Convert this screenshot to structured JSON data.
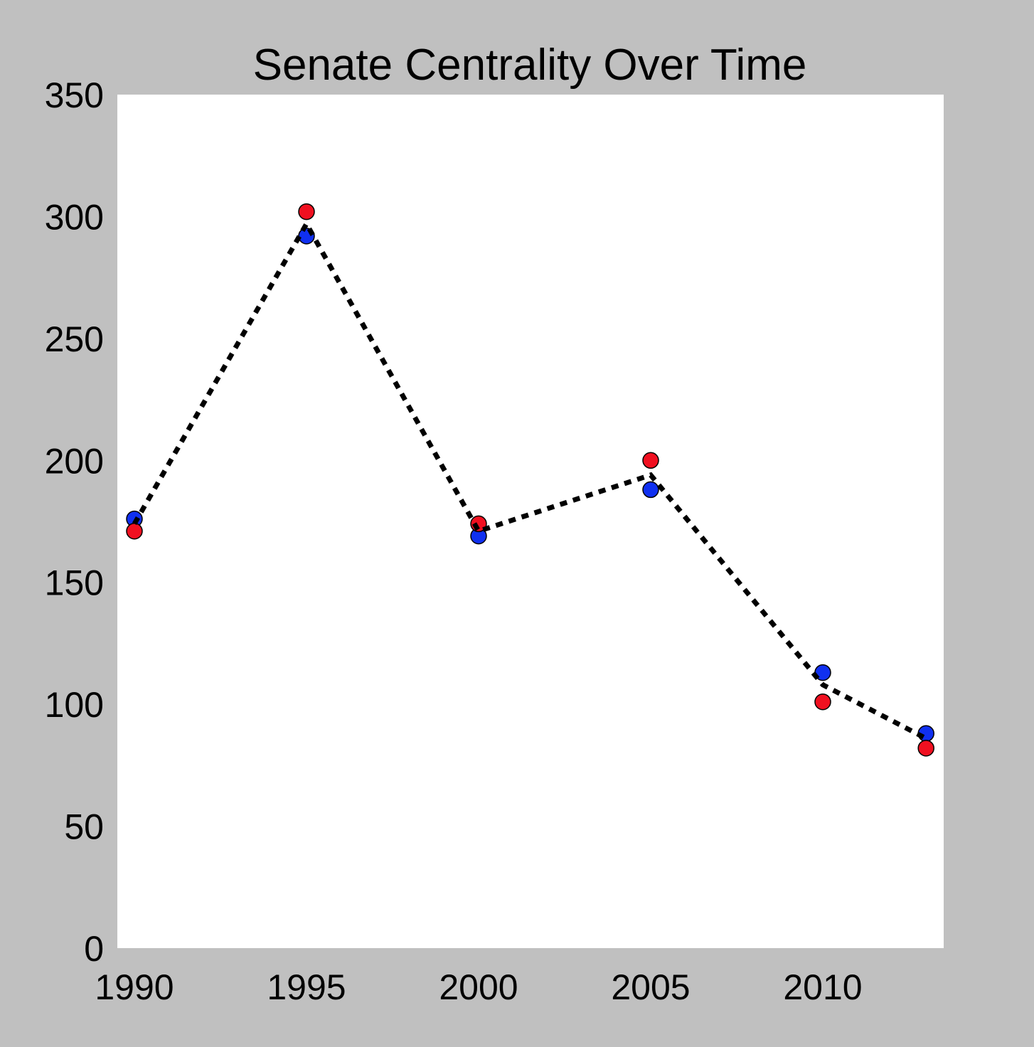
{
  "chart_data": {
    "type": "scatter",
    "title": "Senate Centrality Over Time",
    "xlabel": "",
    "ylabel": "",
    "xlim": [
      1990,
      2014
    ],
    "ylim": [
      0,
      350
    ],
    "x_ticks": [
      "1990",
      "1995",
      "2000",
      "2005",
      "2010"
    ],
    "y_ticks": [
      "0",
      "50",
      "100",
      "150",
      "200",
      "250",
      "300",
      "350"
    ],
    "grid": false,
    "legend": "none",
    "x": [
      1990,
      1995,
      2000,
      2005,
      2010,
      2013
    ],
    "series": [
      {
        "values": [
          176,
          292,
          169,
          188,
          113,
          88
        ],
        "color": "#1030f0",
        "style": "marker"
      },
      {
        "values": [
          171,
          302,
          174,
          200,
          101,
          82
        ],
        "color": "#f01020",
        "style": "marker"
      },
      {
        "values": [
          174,
          297,
          171,
          194,
          108,
          86
        ],
        "color": "#000000",
        "style": "dotted-line"
      }
    ],
    "colors": {
      "background": "#c0c0c0",
      "plot_area": "#ffffff"
    }
  }
}
